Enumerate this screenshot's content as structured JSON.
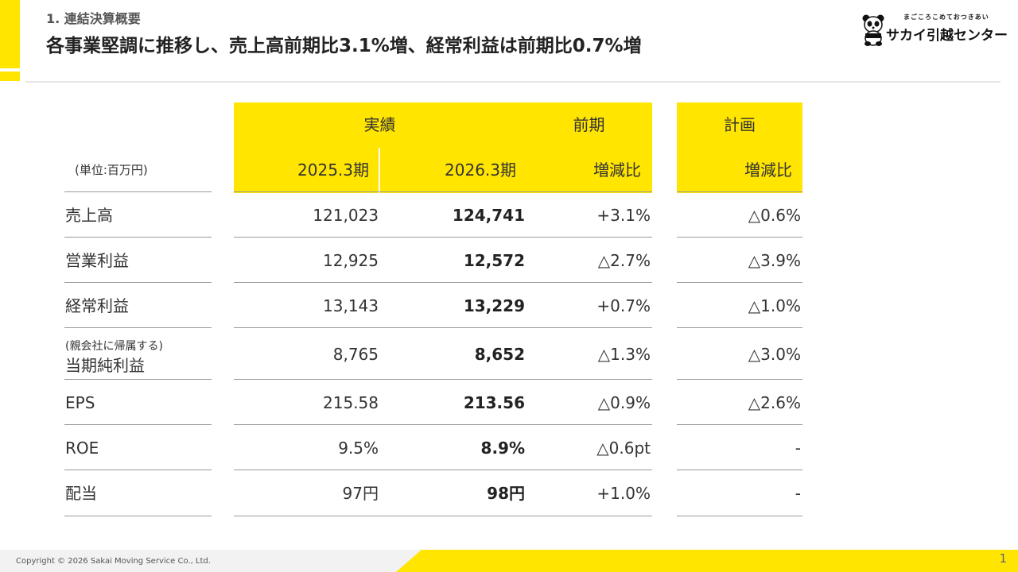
{
  "header": {
    "section": "1. 連結決算概要",
    "title": "各事業堅調に推移し、売上高前期比3.1%増、経常利益は前期比0.7%増"
  },
  "logo": {
    "tagline": "まごころこめておつきあい",
    "name": "サカイ引越センター"
  },
  "table": {
    "unit": "(単位:百万円)",
    "group_headers": {
      "actual": "実績",
      "prior": "前期",
      "plan": "計画"
    },
    "col_headers": [
      "2025.3期",
      "2026.3期",
      "増減比",
      "増減比"
    ],
    "rows": [
      {
        "label": "売上高",
        "sub": "",
        "fy2025": "121,023",
        "fy2026": "124,741",
        "yoy": "+3.1%",
        "plan": "△0.6%"
      },
      {
        "label": "営業利益",
        "sub": "",
        "fy2025": "12,925",
        "fy2026": "12,572",
        "yoy": "△2.7%",
        "plan": "△3.9%"
      },
      {
        "label": "経常利益",
        "sub": "",
        "fy2025": "13,143",
        "fy2026": "13,229",
        "yoy": "+0.7%",
        "plan": "△1.0%"
      },
      {
        "label": "当期純利益",
        "sub": "(親会社に帰属する)",
        "fy2025": "8,765",
        "fy2026": "8,652",
        "yoy": "△1.3%",
        "plan": "△3.0%"
      },
      {
        "label": "EPS",
        "sub": "",
        "fy2025": "215.58",
        "fy2026": "213.56",
        "yoy": "△0.9%",
        "plan": "△2.6%"
      },
      {
        "label": "ROE",
        "sub": "",
        "fy2025": "9.5%",
        "fy2026": "8.9%",
        "yoy": "△0.6pt",
        "plan": "-"
      },
      {
        "label": "配当",
        "sub": "",
        "fy2025": "97円",
        "fy2026": "98円",
        "yoy": "+1.0%",
        "plan": "-"
      }
    ]
  },
  "footer": {
    "copyright": "Copyright © 2026 Sakai Moving Service Co., Ltd.",
    "page": "1"
  },
  "colors": {
    "accent": "#FFE500",
    "text": "#333333",
    "rule": "#999999"
  }
}
